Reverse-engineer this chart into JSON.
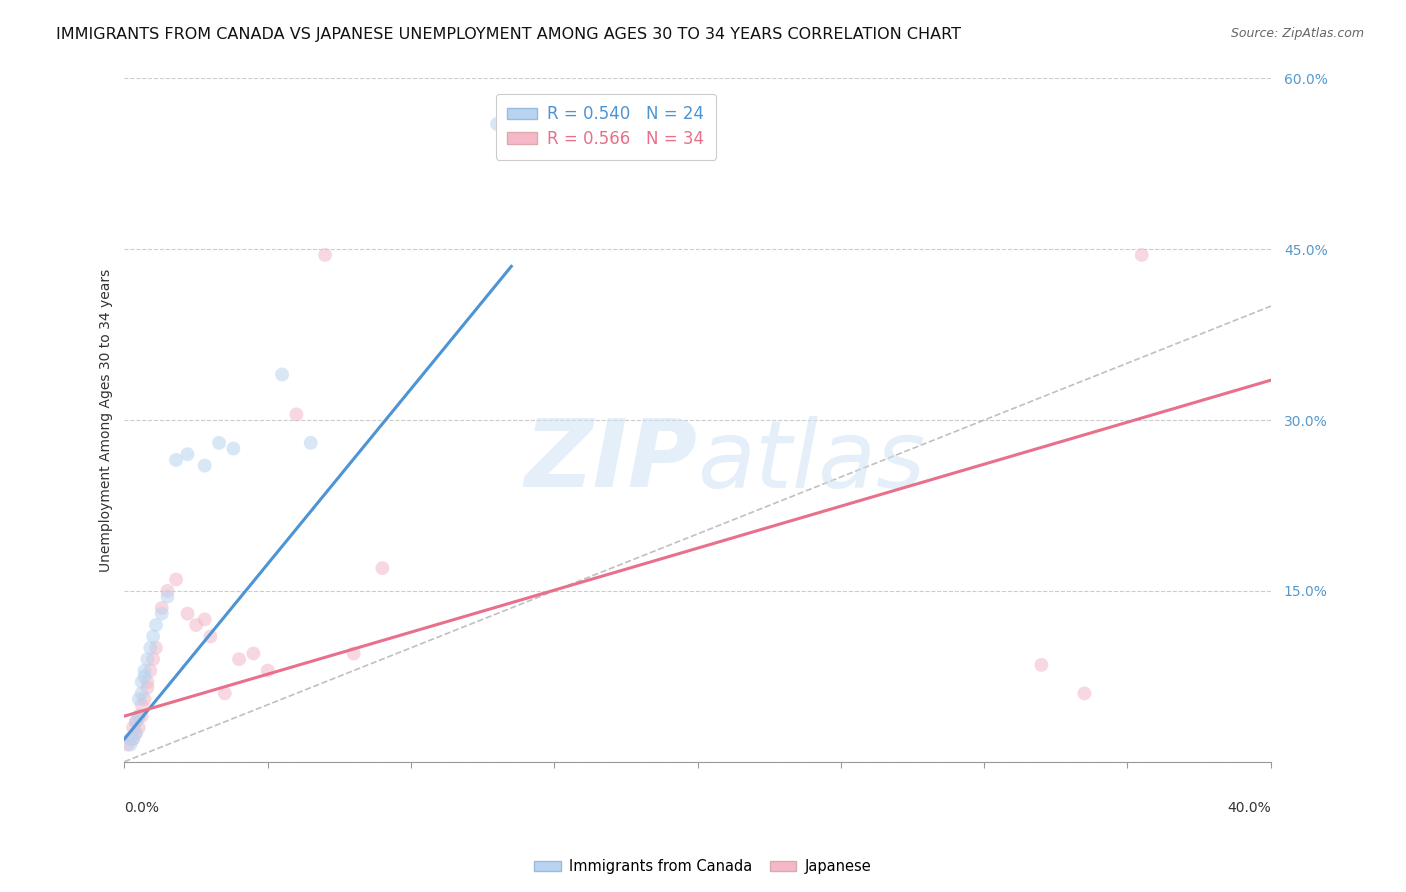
{
  "title": "IMMIGRANTS FROM CANADA VS JAPANESE UNEMPLOYMENT AMONG AGES 30 TO 34 YEARS CORRELATION CHART",
  "source": "Source: ZipAtlas.com",
  "ylabel": "Unemployment Among Ages 30 to 34 years",
  "xlim": [
    0,
    0.4
  ],
  "ylim": [
    0,
    0.6
  ],
  "watermark": "ZIPatlas",
  "blue_line_color": "#4d94d4",
  "pink_line_color": "#e8708a",
  "blue_scatter_color": "#b8d4f0",
  "pink_scatter_color": "#f4b8c8",
  "blue_points_x": [
    0.002,
    0.003,
    0.004,
    0.004,
    0.005,
    0.005,
    0.006,
    0.006,
    0.007,
    0.007,
    0.008,
    0.009,
    0.01,
    0.011,
    0.013,
    0.015,
    0.018,
    0.022,
    0.028,
    0.033,
    0.038,
    0.055,
    0.065,
    0.13
  ],
  "blue_points_y": [
    0.015,
    0.02,
    0.025,
    0.035,
    0.04,
    0.055,
    0.06,
    0.07,
    0.075,
    0.08,
    0.09,
    0.1,
    0.11,
    0.12,
    0.13,
    0.145,
    0.265,
    0.27,
    0.26,
    0.28,
    0.275,
    0.34,
    0.28,
    0.56
  ],
  "pink_points_x": [
    0.001,
    0.002,
    0.003,
    0.003,
    0.004,
    0.004,
    0.005,
    0.005,
    0.006,
    0.006,
    0.007,
    0.008,
    0.008,
    0.009,
    0.01,
    0.011,
    0.013,
    0.015,
    0.018,
    0.022,
    0.025,
    0.028,
    0.03,
    0.035,
    0.04,
    0.045,
    0.05,
    0.06,
    0.07,
    0.08,
    0.09,
    0.32,
    0.335,
    0.355
  ],
  "pink_points_y": [
    0.015,
    0.02,
    0.02,
    0.03,
    0.025,
    0.035,
    0.03,
    0.04,
    0.04,
    0.05,
    0.055,
    0.065,
    0.07,
    0.08,
    0.09,
    0.1,
    0.135,
    0.15,
    0.16,
    0.13,
    0.12,
    0.125,
    0.11,
    0.06,
    0.09,
    0.095,
    0.08,
    0.305,
    0.445,
    0.095,
    0.17,
    0.085,
    0.06,
    0.445
  ],
  "blue_line_x": [
    0.0,
    0.135
  ],
  "blue_line_y": [
    0.02,
    0.435
  ],
  "pink_line_x": [
    0.0,
    0.4
  ],
  "pink_line_y": [
    0.04,
    0.335
  ],
  "ref_line_x": [
    0.0,
    0.6
  ],
  "ref_line_y": [
    0.0,
    0.6
  ],
  "ytick_values": [
    0.0,
    0.15,
    0.3,
    0.45,
    0.6
  ],
  "ytick_labels": [
    "",
    "15.0%",
    "30.0%",
    "45.0%",
    "60.0%"
  ],
  "xtick_label_left": "0.0%",
  "xtick_label_right": "40.0%",
  "grid_color": "#cccccc",
  "background_color": "#ffffff",
  "title_fontsize": 11.5,
  "axis_label_fontsize": 10,
  "tick_fontsize": 10,
  "legend_fontsize": 12,
  "scatter_size": 100,
  "scatter_alpha": 0.55
}
